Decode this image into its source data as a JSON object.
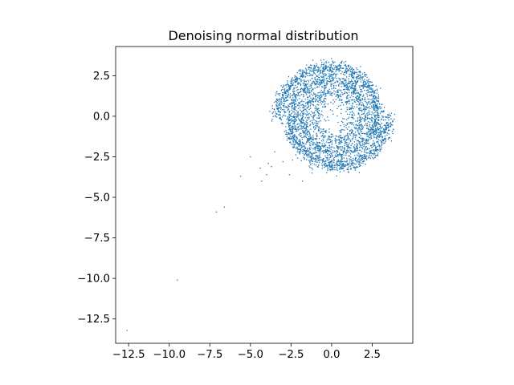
{
  "chart_data": {
    "type": "scatter",
    "title": "Denoising normal distribution",
    "xlabel": "",
    "ylabel": "",
    "xlim": [
      -13.3,
      5.0
    ],
    "ylim": [
      -14.0,
      4.3
    ],
    "xticks": [
      -12.5,
      -10.0,
      -7.5,
      -5.0,
      -2.5,
      0.0,
      2.5
    ],
    "xtick_labels": [
      "−12.5",
      "−10.0",
      "−7.5",
      "−5.0",
      "−2.5",
      "0.0",
      "2.5"
    ],
    "yticks": [
      2.5,
      0.0,
      -2.5,
      -5.0,
      -7.5,
      -10.0,
      -12.5
    ],
    "ytick_labels": [
      "2.5",
      "0.0",
      "−2.5",
      "−5.0",
      "−7.5",
      "−10.0",
      "−12.5"
    ],
    "grid": false,
    "marker_color": "#1f77b4",
    "series": [
      {
        "description": "dense double-arm spiral (swiss roll) of samples centered near (0, 0), arms extending from about r=0.7 to r=3.4",
        "spiral": {
          "center": [
            0.1,
            0.0
          ],
          "r_min": 0.7,
          "r_max": 3.4,
          "turns": 1.75,
          "arm_spread": 0.22,
          "n_points": 3200
        },
        "scatter_stray_points": 260
      },
      {
        "description": "outlier points trailing toward lower-left",
        "x": [
          -12.6,
          -9.5,
          -7.1,
          -6.6,
          -5.6,
          -5.0,
          -4.4,
          -4.3,
          -4.0,
          -3.9,
          -3.7,
          -3.5,
          -1.8,
          -2.6,
          -3.0,
          -1.2
        ],
        "y": [
          -13.2,
          -10.1,
          -5.9,
          -5.6,
          -3.7,
          -2.5,
          -3.2,
          -4.0,
          -3.6,
          -2.9,
          -3.1,
          -2.2,
          -4.0,
          -3.6,
          -2.8,
          -3.5
        ]
      }
    ]
  }
}
